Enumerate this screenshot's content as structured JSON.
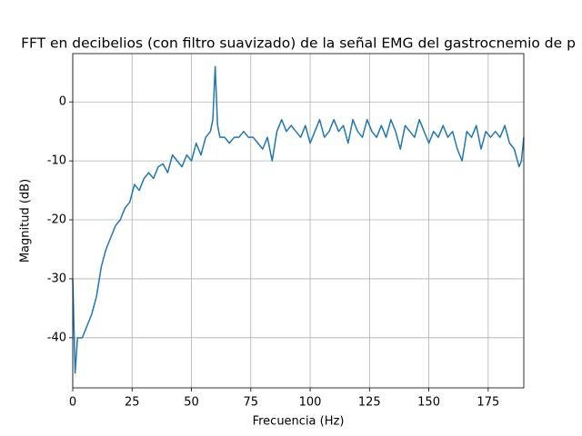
{
  "chart_data": {
    "type": "line",
    "title": "FFT en decibelios (con filtro suavizado) de la señal EMG del gastrocnemio de p",
    "xlabel": "Frecuencia (Hz)",
    "ylabel": "Magnitud (dB)",
    "x": [
      0,
      1,
      2,
      4,
      6,
      8,
      10,
      12,
      14,
      16,
      18,
      20,
      22,
      24,
      26,
      28,
      30,
      32,
      34,
      36,
      38,
      40,
      42,
      44,
      46,
      48,
      50,
      52,
      54,
      56,
      58,
      59,
      60,
      61,
      62,
      64,
      66,
      68,
      70,
      72,
      74,
      76,
      78,
      80,
      82,
      84,
      86,
      88,
      90,
      92,
      94,
      96,
      98,
      100,
      102,
      104,
      106,
      108,
      110,
      112,
      114,
      116,
      118,
      120,
      122,
      124,
      126,
      128,
      130,
      132,
      134,
      136,
      138,
      140,
      142,
      144,
      146,
      148,
      150,
      152,
      154,
      156,
      158,
      160,
      162,
      164,
      166,
      168,
      170,
      172,
      174,
      176,
      178,
      180,
      182,
      184,
      186,
      188,
      189,
      190
    ],
    "values": [
      -30,
      -46,
      -40,
      -40,
      -38,
      -36,
      -33,
      -28,
      -25,
      -23,
      -21,
      -20,
      -18,
      -17,
      -14,
      -15,
      -13,
      -12,
      -13,
      -11,
      -10.5,
      -12,
      -9,
      -10,
      -11,
      -9,
      -10,
      -7,
      -9,
      -6,
      -5,
      -3,
      6,
      -4,
      -6,
      -6,
      -7,
      -6,
      -6,
      -5,
      -6,
      -6,
      -7,
      -8,
      -6,
      -10,
      -5,
      -3,
      -5,
      -4,
      -5,
      -6,
      -4,
      -7,
      -5,
      -3,
      -6,
      -5,
      -3,
      -5,
      -4,
      -7,
      -3,
      -5,
      -6,
      -3,
      -5,
      -6,
      -4,
      -6,
      -3,
      -5,
      -8,
      -4,
      -5,
      -6,
      -3,
      -5,
      -7,
      -5,
      -6,
      -4,
      -6,
      -5,
      -8,
      -10,
      -5,
      -6,
      -4,
      -8,
      -5,
      -6,
      -5,
      -6,
      -4,
      -7,
      -8,
      -11,
      -10,
      -6
    ],
    "color": "#1f77b4",
    "xlim": [
      0,
      190
    ],
    "ylim": [
      -48.5,
      8.2
    ],
    "xticks": [
      0,
      25,
      50,
      75,
      100,
      125,
      150,
      175
    ],
    "yticks": [
      -40,
      -30,
      -20,
      -10,
      0
    ],
    "grid": true
  }
}
